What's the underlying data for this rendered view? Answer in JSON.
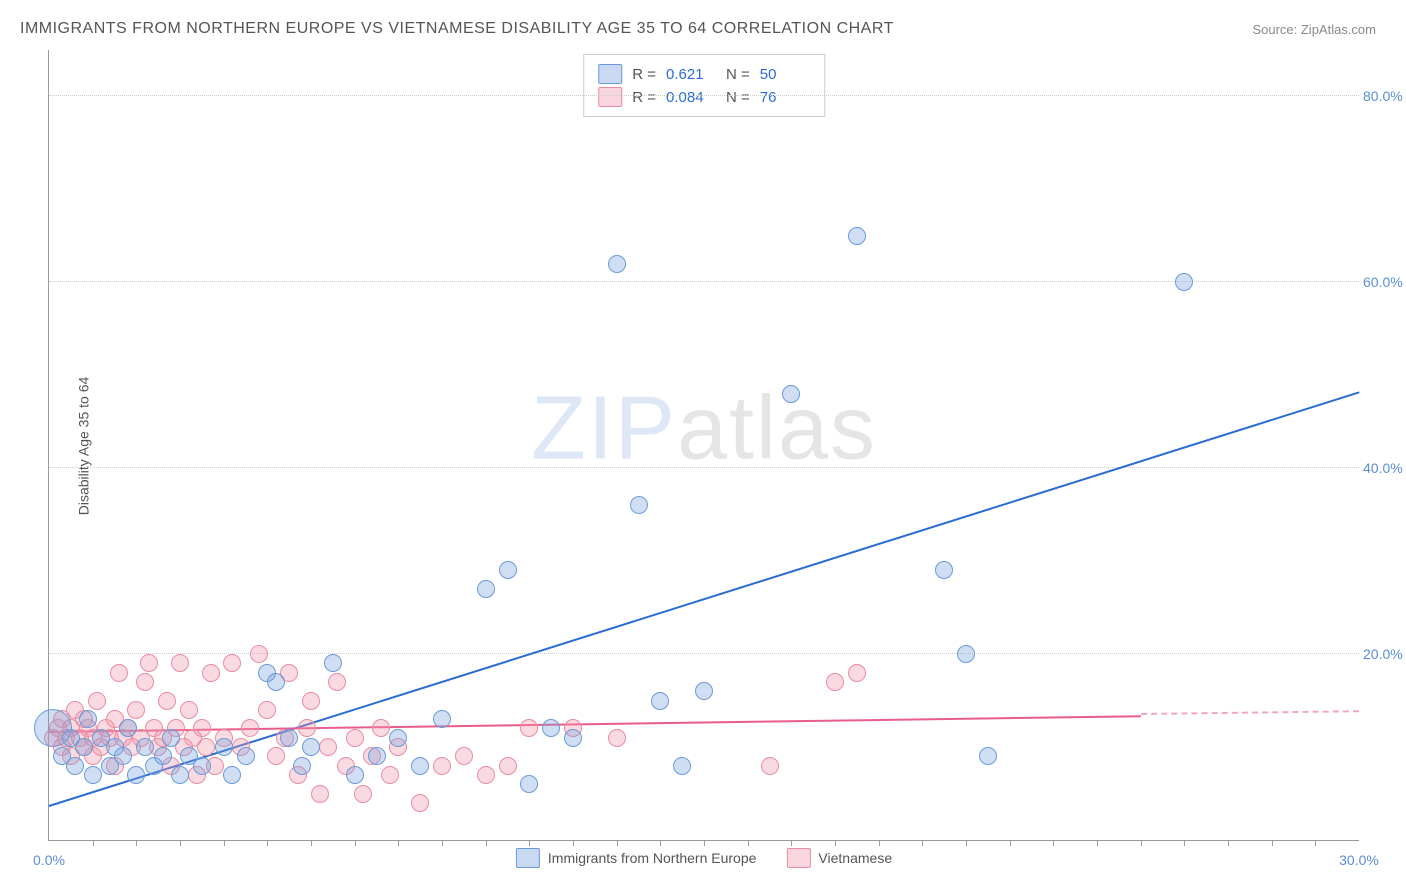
{
  "title": "IMMIGRANTS FROM NORTHERN EUROPE VS VIETNAMESE DISABILITY AGE 35 TO 64 CORRELATION CHART",
  "source_prefix": "Source: ",
  "source_link": "ZipAtlas.com",
  "ylabel": "Disability Age 35 to 64",
  "watermark": {
    "z": "ZIP",
    "rest": "atlas"
  },
  "chart": {
    "type": "scatter",
    "xlim": [
      0,
      30
    ],
    "ylim": [
      0,
      85
    ],
    "xticks": [
      0,
      30
    ],
    "xtick_labels": [
      "0.0%",
      "30.0%"
    ],
    "xminor_ticks": [
      1,
      2,
      3,
      4,
      5,
      6,
      7,
      8,
      9,
      10,
      11,
      12,
      13,
      14,
      15,
      16,
      17,
      18,
      19,
      20,
      21,
      22,
      23,
      24,
      25,
      26,
      27,
      28,
      29
    ],
    "yticks": [
      20,
      40,
      60,
      80
    ],
    "ytick_labels": [
      "20.0%",
      "40.0%",
      "60.0%",
      "80.0%"
    ],
    "grid_color": "#cccccc",
    "axis_color": "#999999",
    "background_color": "#ffffff",
    "marker_radius": 8,
    "series": {
      "blue": {
        "label": "Immigrants from Northern Europe",
        "fill": "rgba(120,160,220,0.35)",
        "stroke": "#6a9bd8",
        "R": "0.621",
        "N": "50",
        "trend": {
          "x1": 0,
          "y1": 3.5,
          "x2": 30,
          "y2": 48,
          "color": "#2b6cd4"
        },
        "points": [
          [
            0.1,
            12,
            18
          ],
          [
            0.3,
            9
          ],
          [
            0.5,
            11
          ],
          [
            0.6,
            8
          ],
          [
            0.8,
            10
          ],
          [
            0.9,
            13
          ],
          [
            1.0,
            7
          ],
          [
            1.2,
            11
          ],
          [
            1.4,
            8
          ],
          [
            1.5,
            10
          ],
          [
            1.7,
            9
          ],
          [
            1.8,
            12
          ],
          [
            2.0,
            7
          ],
          [
            2.2,
            10
          ],
          [
            2.4,
            8
          ],
          [
            2.6,
            9
          ],
          [
            2.8,
            11
          ],
          [
            3.0,
            7
          ],
          [
            3.2,
            9
          ],
          [
            3.5,
            8
          ],
          [
            4.0,
            10
          ],
          [
            4.2,
            7
          ],
          [
            4.5,
            9
          ],
          [
            5.0,
            18
          ],
          [
            5.2,
            17
          ],
          [
            5.5,
            11
          ],
          [
            5.8,
            8
          ],
          [
            6.0,
            10
          ],
          [
            6.5,
            19
          ],
          [
            7.0,
            7
          ],
          [
            7.5,
            9
          ],
          [
            8.0,
            11
          ],
          [
            8.5,
            8
          ],
          [
            9.0,
            13
          ],
          [
            10.0,
            27
          ],
          [
            10.5,
            29
          ],
          [
            11.0,
            6
          ],
          [
            11.5,
            12
          ],
          [
            12.0,
            11
          ],
          [
            13.0,
            62
          ],
          [
            13.5,
            36
          ],
          [
            14.0,
            15
          ],
          [
            14.5,
            8
          ],
          [
            15.0,
            16
          ],
          [
            17.0,
            48
          ],
          [
            18.5,
            65
          ],
          [
            20.5,
            29
          ],
          [
            21.0,
            20
          ],
          [
            21.5,
            9
          ],
          [
            26.0,
            60
          ]
        ]
      },
      "pink": {
        "label": "Vietnamese",
        "fill": "rgba(240,150,170,0.35)",
        "stroke": "#e88ca3",
        "R": "0.084",
        "N": "76",
        "trend_solid": {
          "x1": 0,
          "y1": 11.5,
          "x2": 25,
          "y2": 13.2,
          "color": "#e85d8a"
        },
        "trend_dash": {
          "x1": 25,
          "y1": 13.2,
          "x2": 30,
          "y2": 13.5,
          "color": "#f0a8bc"
        },
        "points": [
          [
            0.1,
            11
          ],
          [
            0.2,
            12
          ],
          [
            0.3,
            10
          ],
          [
            0.3,
            13
          ],
          [
            0.4,
            11
          ],
          [
            0.5,
            12
          ],
          [
            0.5,
            9
          ],
          [
            0.6,
            14
          ],
          [
            0.7,
            11
          ],
          [
            0.8,
            10
          ],
          [
            0.8,
            13
          ],
          [
            0.9,
            12
          ],
          [
            1.0,
            11
          ],
          [
            1.0,
            9
          ],
          [
            1.1,
            15
          ],
          [
            1.2,
            10
          ],
          [
            1.3,
            12
          ],
          [
            1.4,
            11
          ],
          [
            1.5,
            13
          ],
          [
            1.5,
            8
          ],
          [
            1.6,
            18
          ],
          [
            1.7,
            11
          ],
          [
            1.8,
            12
          ],
          [
            1.9,
            10
          ],
          [
            2.0,
            14
          ],
          [
            2.1,
            11
          ],
          [
            2.2,
            17
          ],
          [
            2.3,
            19
          ],
          [
            2.4,
            12
          ],
          [
            2.5,
            10
          ],
          [
            2.6,
            11
          ],
          [
            2.7,
            15
          ],
          [
            2.8,
            8
          ],
          [
            2.9,
            12
          ],
          [
            3.0,
            19
          ],
          [
            3.1,
            10
          ],
          [
            3.2,
            14
          ],
          [
            3.3,
            11
          ],
          [
            3.4,
            7
          ],
          [
            3.5,
            12
          ],
          [
            3.6,
            10
          ],
          [
            3.7,
            18
          ],
          [
            3.8,
            8
          ],
          [
            4.0,
            11
          ],
          [
            4.2,
            19
          ],
          [
            4.4,
            10
          ],
          [
            4.6,
            12
          ],
          [
            4.8,
            20
          ],
          [
            5.0,
            14
          ],
          [
            5.2,
            9
          ],
          [
            5.4,
            11
          ],
          [
            5.5,
            18
          ],
          [
            5.7,
            7
          ],
          [
            5.9,
            12
          ],
          [
            6.0,
            15
          ],
          [
            6.2,
            5
          ],
          [
            6.4,
            10
          ],
          [
            6.6,
            17
          ],
          [
            6.8,
            8
          ],
          [
            7.0,
            11
          ],
          [
            7.2,
            5
          ],
          [
            7.4,
            9
          ],
          [
            7.6,
            12
          ],
          [
            7.8,
            7
          ],
          [
            8.0,
            10
          ],
          [
            8.5,
            4
          ],
          [
            9.0,
            8
          ],
          [
            9.5,
            9
          ],
          [
            10.0,
            7
          ],
          [
            10.5,
            8
          ],
          [
            11.0,
            12
          ],
          [
            12.0,
            12
          ],
          [
            13.0,
            11
          ],
          [
            16.5,
            8
          ],
          [
            18.0,
            17
          ],
          [
            18.5,
            18
          ]
        ]
      }
    }
  },
  "stats_labels": {
    "R": "R  =",
    "N": "N  ="
  },
  "colors": {
    "title": "#555555",
    "label": "#555555",
    "value": "#2b6cd4",
    "tick": "#5b8dd6"
  }
}
